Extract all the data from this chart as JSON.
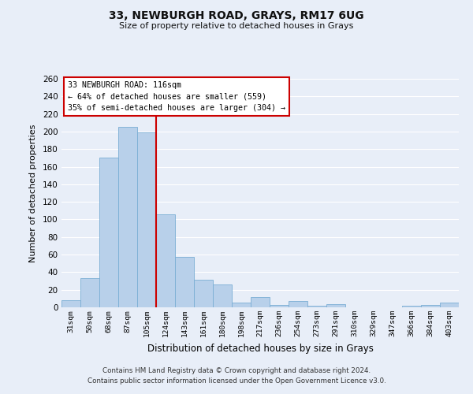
{
  "title": "33, NEWBURGH ROAD, GRAYS, RM17 6UG",
  "subtitle": "Size of property relative to detached houses in Grays",
  "xlabel": "Distribution of detached houses by size in Grays",
  "ylabel": "Number of detached properties",
  "categories": [
    "31sqm",
    "50sqm",
    "68sqm",
    "87sqm",
    "105sqm",
    "124sqm",
    "143sqm",
    "161sqm",
    "180sqm",
    "198sqm",
    "217sqm",
    "236sqm",
    "254sqm",
    "273sqm",
    "291sqm",
    "310sqm",
    "329sqm",
    "347sqm",
    "366sqm",
    "384sqm",
    "403sqm"
  ],
  "values": [
    8,
    33,
    170,
    205,
    199,
    106,
    57,
    31,
    26,
    5,
    12,
    3,
    7,
    2,
    4,
    0,
    0,
    0,
    2,
    3,
    5
  ],
  "bar_color": "#b8d0ea",
  "bar_edge_color": "#7aaed4",
  "vline_x_index": 5,
  "vline_color": "#cc0000",
  "ylim": [
    0,
    260
  ],
  "yticks": [
    0,
    20,
    40,
    60,
    80,
    100,
    120,
    140,
    160,
    180,
    200,
    220,
    240,
    260
  ],
  "annotation_title": "33 NEWBURGH ROAD: 116sqm",
  "annotation_line1": "← 64% of detached houses are smaller (559)",
  "annotation_line2": "35% of semi-detached houses are larger (304) →",
  "annotation_box_color": "#ffffff",
  "annotation_box_edge": "#cc0000",
  "footer_line1": "Contains HM Land Registry data © Crown copyright and database right 2024.",
  "footer_line2": "Contains public sector information licensed under the Open Government Licence v3.0.",
  "background_color": "#e8eef8",
  "grid_color": "#ffffff"
}
